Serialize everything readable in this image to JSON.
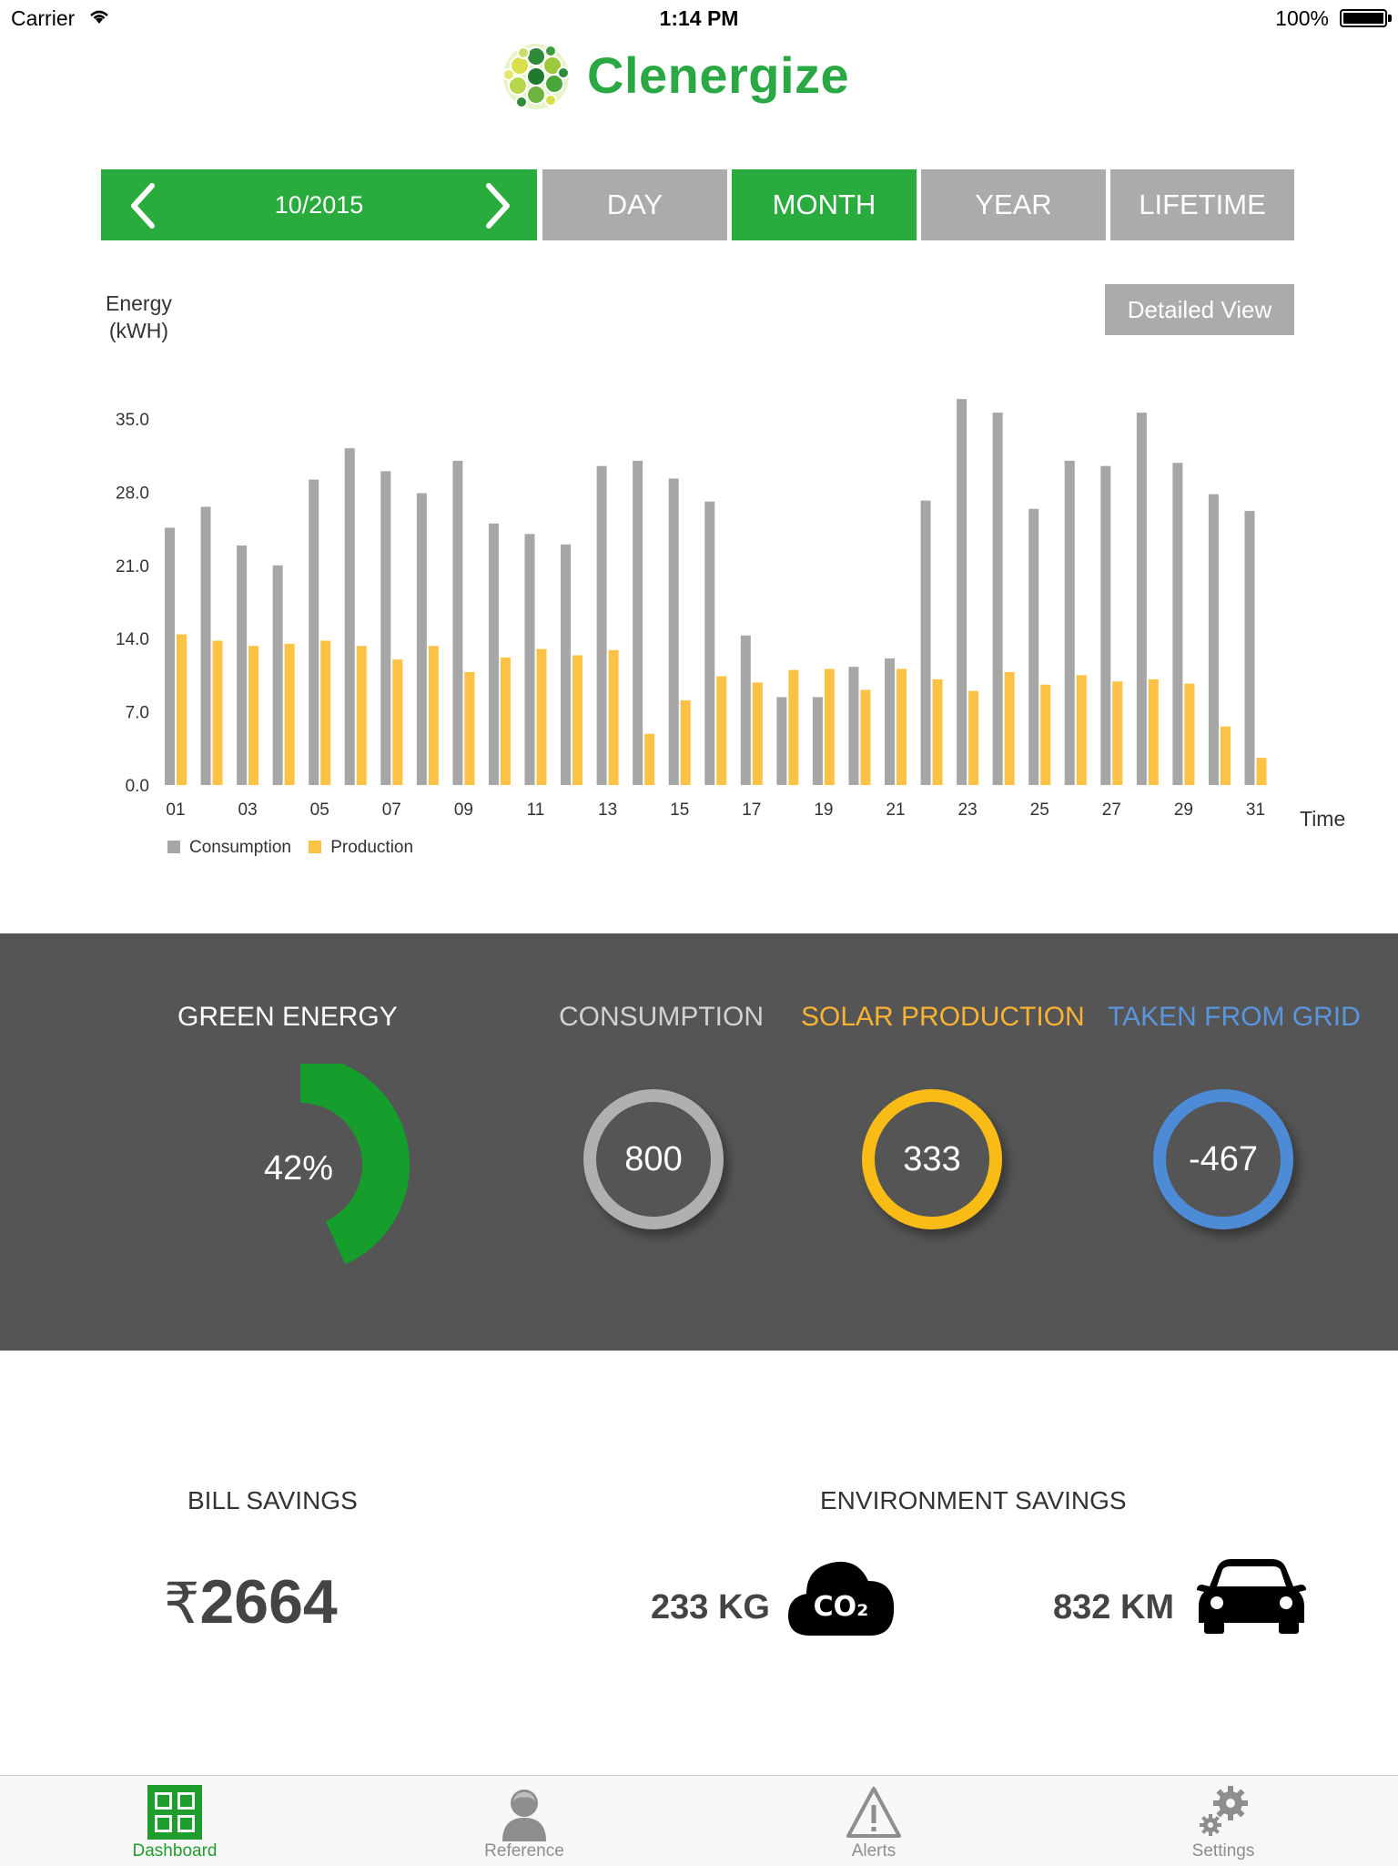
{
  "status_bar": {
    "carrier": "Carrier",
    "time": "1:14 PM",
    "battery": "100%"
  },
  "app": {
    "name": "Clenergize"
  },
  "period_nav": {
    "current": "10/2015",
    "tabs": [
      {
        "label": "DAY",
        "selected": false
      },
      {
        "label": "MONTH",
        "selected": true
      },
      {
        "label": "YEAR",
        "selected": false
      },
      {
        "label": "LIFETIME",
        "selected": false
      }
    ]
  },
  "chart_header": {
    "ylabel_line1": "Energy",
    "ylabel_line2": "(kWH)",
    "detail_button": "Detailed View",
    "xlabel": "Time"
  },
  "chart_data": {
    "type": "bar",
    "xlabel": "Time",
    "ylabel": "Energy (kWH)",
    "ylim": [
      0,
      35
    ],
    "yticks": [
      "0.0",
      "7.0",
      "14.0",
      "21.0",
      "28.0",
      "35.0"
    ],
    "grid": false,
    "legend_position": "bottom-left",
    "categories": [
      "01",
      "02",
      "03",
      "04",
      "05",
      "06",
      "07",
      "08",
      "09",
      "10",
      "11",
      "12",
      "13",
      "14",
      "15",
      "16",
      "17",
      "18",
      "19",
      "20",
      "21",
      "22",
      "23",
      "24",
      "25",
      "26",
      "27",
      "28",
      "29",
      "30",
      "31"
    ],
    "xtick_labels": [
      "01",
      "03",
      "05",
      "07",
      "09",
      "11",
      "13",
      "15",
      "17",
      "19",
      "21",
      "23",
      "25",
      "27",
      "29",
      "31"
    ],
    "series": [
      {
        "name": "Consumption",
        "color": "#a6a6a6",
        "values": [
          24.6,
          26.6,
          22.9,
          21.0,
          29.2,
          32.2,
          30.0,
          27.9,
          31.0,
          25.0,
          24.0,
          23.0,
          30.5,
          31.0,
          29.3,
          27.1,
          14.3,
          8.4,
          8.4,
          11.3,
          12.1,
          27.2,
          36.9,
          35.6,
          26.4,
          31.0,
          30.5,
          35.6,
          30.8,
          27.8,
          26.2
        ]
      },
      {
        "name": "Production",
        "color": "#fcc246",
        "values": [
          14.4,
          13.8,
          13.3,
          13.5,
          13.8,
          13.3,
          12.0,
          13.3,
          10.8,
          12.2,
          13.0,
          12.4,
          12.9,
          4.9,
          8.1,
          10.4,
          9.8,
          11.0,
          11.1,
          9.1,
          11.1,
          10.1,
          9.0,
          10.8,
          9.6,
          10.5,
          9.9,
          10.1,
          9.7,
          5.6,
          2.6
        ]
      }
    ]
  },
  "summary": {
    "green_energy": {
      "title": "GREEN ENERGY",
      "percent_label": "42%",
      "percent": 42,
      "color": "#169e2c"
    },
    "consumption": {
      "title": "CONSUMPTION",
      "value": "800",
      "color": "#b0b0b0",
      "title_color": "#d2d2d2"
    },
    "solar": {
      "title": "SOLAR PRODUCTION",
      "value": "333",
      "color": "#f9bb15",
      "title_color": "#f9b233"
    },
    "grid": {
      "title": "TAKEN FROM GRID",
      "value": "-467",
      "color": "#4e8bd6",
      "title_color": "#5a95de"
    }
  },
  "savings": {
    "bill": {
      "title": "BILL SAVINGS",
      "currency": "₹",
      "amount": "2664"
    },
    "environment": {
      "title": "ENVIRONMENT SAVINGS",
      "co2": "233 KG",
      "co2_badge": "CO₂",
      "distance": "832 KM"
    }
  },
  "tabbar": [
    {
      "label": "Dashboard",
      "icon": "dashboard-grid-icon",
      "active": true
    },
    {
      "label": "Reference",
      "icon": "person-icon",
      "active": false
    },
    {
      "label": "Alerts",
      "icon": "warning-icon",
      "active": false
    },
    {
      "label": "Settings",
      "icon": "gears-icon",
      "active": false
    }
  ]
}
